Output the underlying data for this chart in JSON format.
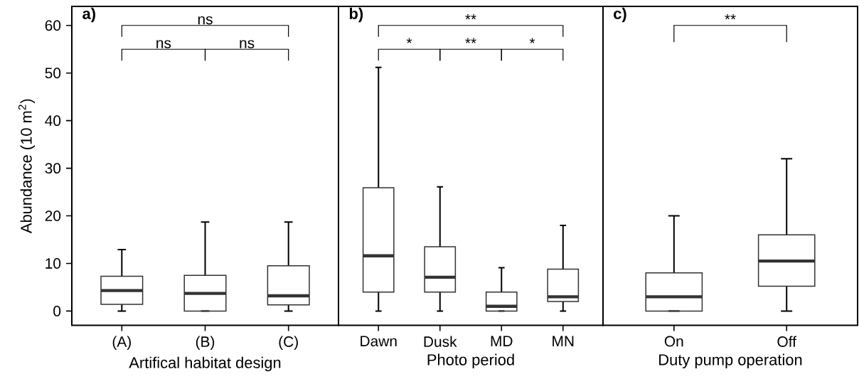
{
  "chart_data": [
    {
      "type": "box",
      "title": "a)",
      "ylabel": "Abundance (10 m$^{2}$)",
      "xlabel": "Artifical habitat design",
      "categories": [
        "(A)",
        "(B)",
        "(C)"
      ],
      "color": "#333333",
      "ylim": [
        -3,
        64
      ],
      "yticks": [
        0,
        10,
        20,
        30,
        40,
        50,
        60
      ],
      "boxes": [
        {
          "low": 0,
          "q1": 1.4,
          "median": 4.3,
          "q3": 7.3,
          "high": 12.9
        },
        {
          "low": 0,
          "q1": 0,
          "median": 3.7,
          "q3": 7.5,
          "high": 18.7
        },
        {
          "low": 0,
          "q1": 1.3,
          "median": 3.2,
          "q3": 9.5,
          "high": 18.7
        }
      ],
      "annotations": [
        "ns",
        "ns",
        "ns"
      ]
    },
    {
      "type": "box",
      "title": "b)",
      "xlabel": "Photo period",
      "categories": [
        "Dawn",
        "Dusk",
        "MD",
        "MN"
      ],
      "color": "#333333",
      "ylim": [
        -3,
        64
      ],
      "yticks": [
        0,
        10,
        20,
        30,
        40,
        50,
        60
      ],
      "tick_labels": "x",
      "boxes": [
        {
          "low": 0,
          "q1": 4.0,
          "median": 11.6,
          "q3": 25.9,
          "high": 51.2
        },
        {
          "low": 0,
          "q1": 4.0,
          "median": 7.1,
          "q3": 13.5,
          "high": 26.1
        },
        {
          "low": 0,
          "q1": 0,
          "median": 1.0,
          "q3": 4.0,
          "high": 9.1
        },
        {
          "low": 0,
          "q1": 2.0,
          "median": 3.0,
          "q3": 8.8,
          "high": 18.0
        }
      ],
      "annotations": [
        "**",
        "*",
        "**",
        "*"
      ]
    },
    {
      "type": "box",
      "title": "c)",
      "xlabel": "Duty pump operation",
      "categories": [
        "On",
        "Off"
      ],
      "color": "#333333",
      "ylim": [
        -3,
        64
      ],
      "yticks": [
        0,
        10,
        20,
        30,
        40,
        50,
        60
      ],
      "tick_labels": "x",
      "boxes": [
        {
          "low": 0,
          "q1": 0,
          "median": 3.0,
          "q3": 8.0,
          "high": 20.0
        },
        {
          "low": 0,
          "q1": 5.2,
          "median": 10.5,
          "q3": 16.0,
          "high": 32.0
        }
      ],
      "annotations": [
        "**"
      ]
    }
  ]
}
